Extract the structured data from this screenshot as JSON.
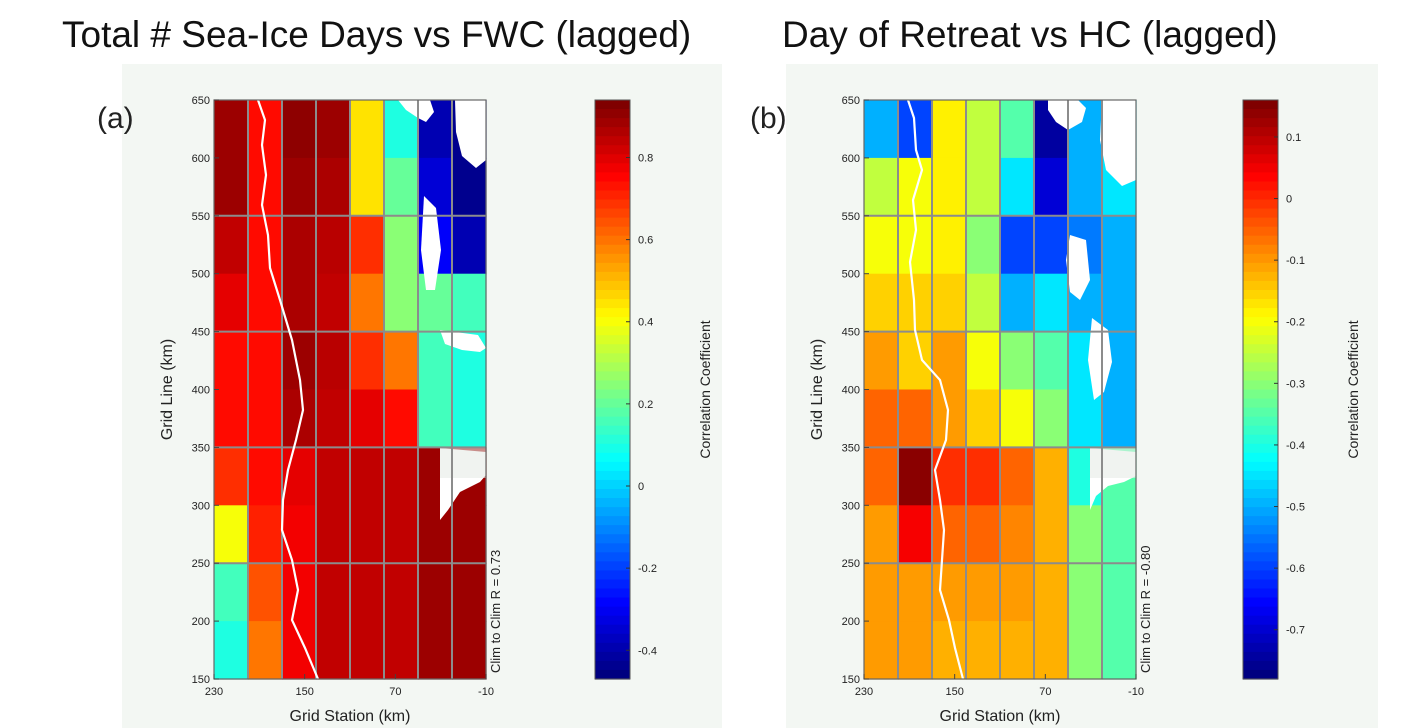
{
  "chart_data": [
    {
      "type": "heatmap",
      "title": "Total # Sea-Ice Days vs FWC (lagged)",
      "panel_label": "(a)",
      "xlabel": "Grid Station (km)",
      "ylabel": "Grid Line (km)",
      "colorbar_label": "Correlation Coefficient",
      "annotation": "Clim to Clim R = 0.73",
      "x_ticks": [
        "230",
        "150",
        "70",
        "-10"
      ],
      "y_ticks": [
        "150",
        "200",
        "250",
        "300",
        "350",
        "400",
        "450",
        "500",
        "550",
        "600",
        "650"
      ],
      "xlim": [
        230,
        -10
      ],
      "ylim": [
        150,
        650
      ],
      "colorbar_ticks": [
        "-0.4",
        "-0.2",
        "0",
        "0.2",
        "0.4",
        "0.6",
        "0.8"
      ],
      "clim": [
        -0.47,
        0.94
      ],
      "columns_km": [
        215,
        185,
        155,
        125,
        95,
        65,
        35,
        5
      ],
      "rows_km": [
        625,
        575,
        525,
        475,
        425,
        375,
        325,
        275,
        225,
        175
      ],
      "values": [
        [
          0.9,
          0.75,
          0.92,
          0.9,
          0.45,
          0.1,
          -0.4,
          -0.45
        ],
        [
          0.9,
          0.75,
          0.9,
          0.88,
          0.45,
          0.2,
          -0.35,
          -0.45
        ],
        [
          0.85,
          0.75,
          0.88,
          0.86,
          0.7,
          0.25,
          -0.3,
          -0.4
        ],
        [
          0.8,
          0.75,
          0.88,
          0.85,
          0.6,
          0.25,
          0.2,
          0.15
        ],
        [
          0.75,
          0.75,
          0.9,
          0.86,
          0.7,
          0.6,
          0.15,
          0.1
        ],
        [
          0.75,
          0.75,
          0.88,
          0.85,
          0.8,
          0.75,
          0.15,
          0.1
        ],
        [
          0.7,
          0.75,
          0.8,
          0.85,
          0.85,
          0.85,
          0.9,
          0.9
        ],
        [
          0.4,
          0.72,
          0.78,
          0.85,
          0.85,
          0.85,
          0.9,
          0.9
        ],
        [
          0.15,
          0.65,
          0.78,
          0.85,
          0.85,
          0.85,
          0.9,
          0.9
        ],
        [
          0.1,
          0.6,
          0.78,
          0.85,
          0.85,
          0.85,
          0.9,
          0.9
        ]
      ]
    },
    {
      "type": "heatmap",
      "title": "Day of Retreat vs HC (lagged)",
      "panel_label": "(b)",
      "xlabel": "Grid Station (km)",
      "ylabel": "Grid Line (km)",
      "colorbar_label": "Correlation Coefficient",
      "annotation": "Clim to Clim R = -0.80",
      "x_ticks": [
        "230",
        "150",
        "70",
        "-10"
      ],
      "y_ticks": [
        "150",
        "200",
        "250",
        "300",
        "350",
        "400",
        "450",
        "500",
        "550",
        "600",
        "650"
      ],
      "xlim": [
        230,
        -10
      ],
      "ylim": [
        150,
        650
      ],
      "colorbar_ticks": [
        "0.1",
        "0",
        "-0.1",
        "-0.2",
        "-0.3",
        "-0.4",
        "-0.5",
        "-0.6",
        "-0.7"
      ],
      "clim": [
        -0.78,
        0.16
      ],
      "columns_km": [
        215,
        185,
        155,
        125,
        95,
        65,
        35,
        5
      ],
      "rows_km": [
        625,
        575,
        525,
        475,
        425,
        375,
        325,
        275,
        225,
        175
      ],
      "values": [
        [
          -0.5,
          -0.6,
          -0.18,
          -0.25,
          -0.35,
          -0.75,
          -0.5,
          -0.45
        ],
        [
          -0.25,
          -0.2,
          -0.18,
          -0.25,
          -0.45,
          -0.7,
          -0.5,
          -0.45
        ],
        [
          -0.2,
          -0.2,
          -0.18,
          -0.3,
          -0.6,
          -0.6,
          -0.55,
          -0.5
        ],
        [
          -0.15,
          -0.15,
          -0.15,
          -0.25,
          -0.5,
          -0.45,
          -0.5,
          -0.5
        ],
        [
          -0.1,
          -0.15,
          -0.1,
          -0.2,
          -0.3,
          -0.35,
          -0.45,
          -0.5
        ],
        [
          -0.05,
          -0.05,
          -0.1,
          -0.15,
          -0.2,
          -0.3,
          -0.45,
          -0.5
        ],
        [
          -0.05,
          0.15,
          0.0,
          0.0,
          -0.05,
          -0.12,
          -0.4,
          -0.35
        ],
        [
          -0.1,
          0.05,
          -0.05,
          -0.05,
          -0.08,
          -0.12,
          -0.3,
          -0.35
        ],
        [
          -0.1,
          -0.1,
          -0.1,
          -0.1,
          -0.1,
          -0.12,
          -0.3,
          -0.35
        ],
        [
          -0.1,
          -0.1,
          -0.12,
          -0.12,
          -0.12,
          -0.12,
          -0.3,
          -0.35
        ]
      ]
    }
  ]
}
